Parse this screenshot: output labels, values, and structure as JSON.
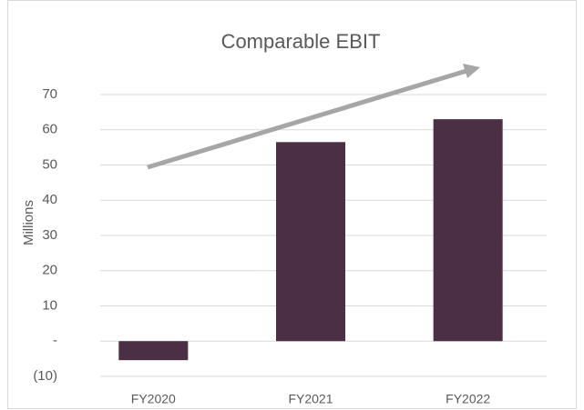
{
  "chart_data": {
    "type": "bar",
    "title": "Comparable EBIT",
    "y_label": "Millions",
    "categories": [
      "FY2020",
      "FY2021",
      "FY2022"
    ],
    "values": [
      -5.4,
      56.5,
      63.0
    ],
    "color": "#4b2f45",
    "ylim": [
      -10,
      70
    ],
    "yticks": [
      {
        "value": -10,
        "label": "(10)"
      },
      {
        "value": 0,
        "label": "-"
      },
      10,
      20,
      30,
      40,
      50,
      60,
      70
    ],
    "grid": true
  }
}
